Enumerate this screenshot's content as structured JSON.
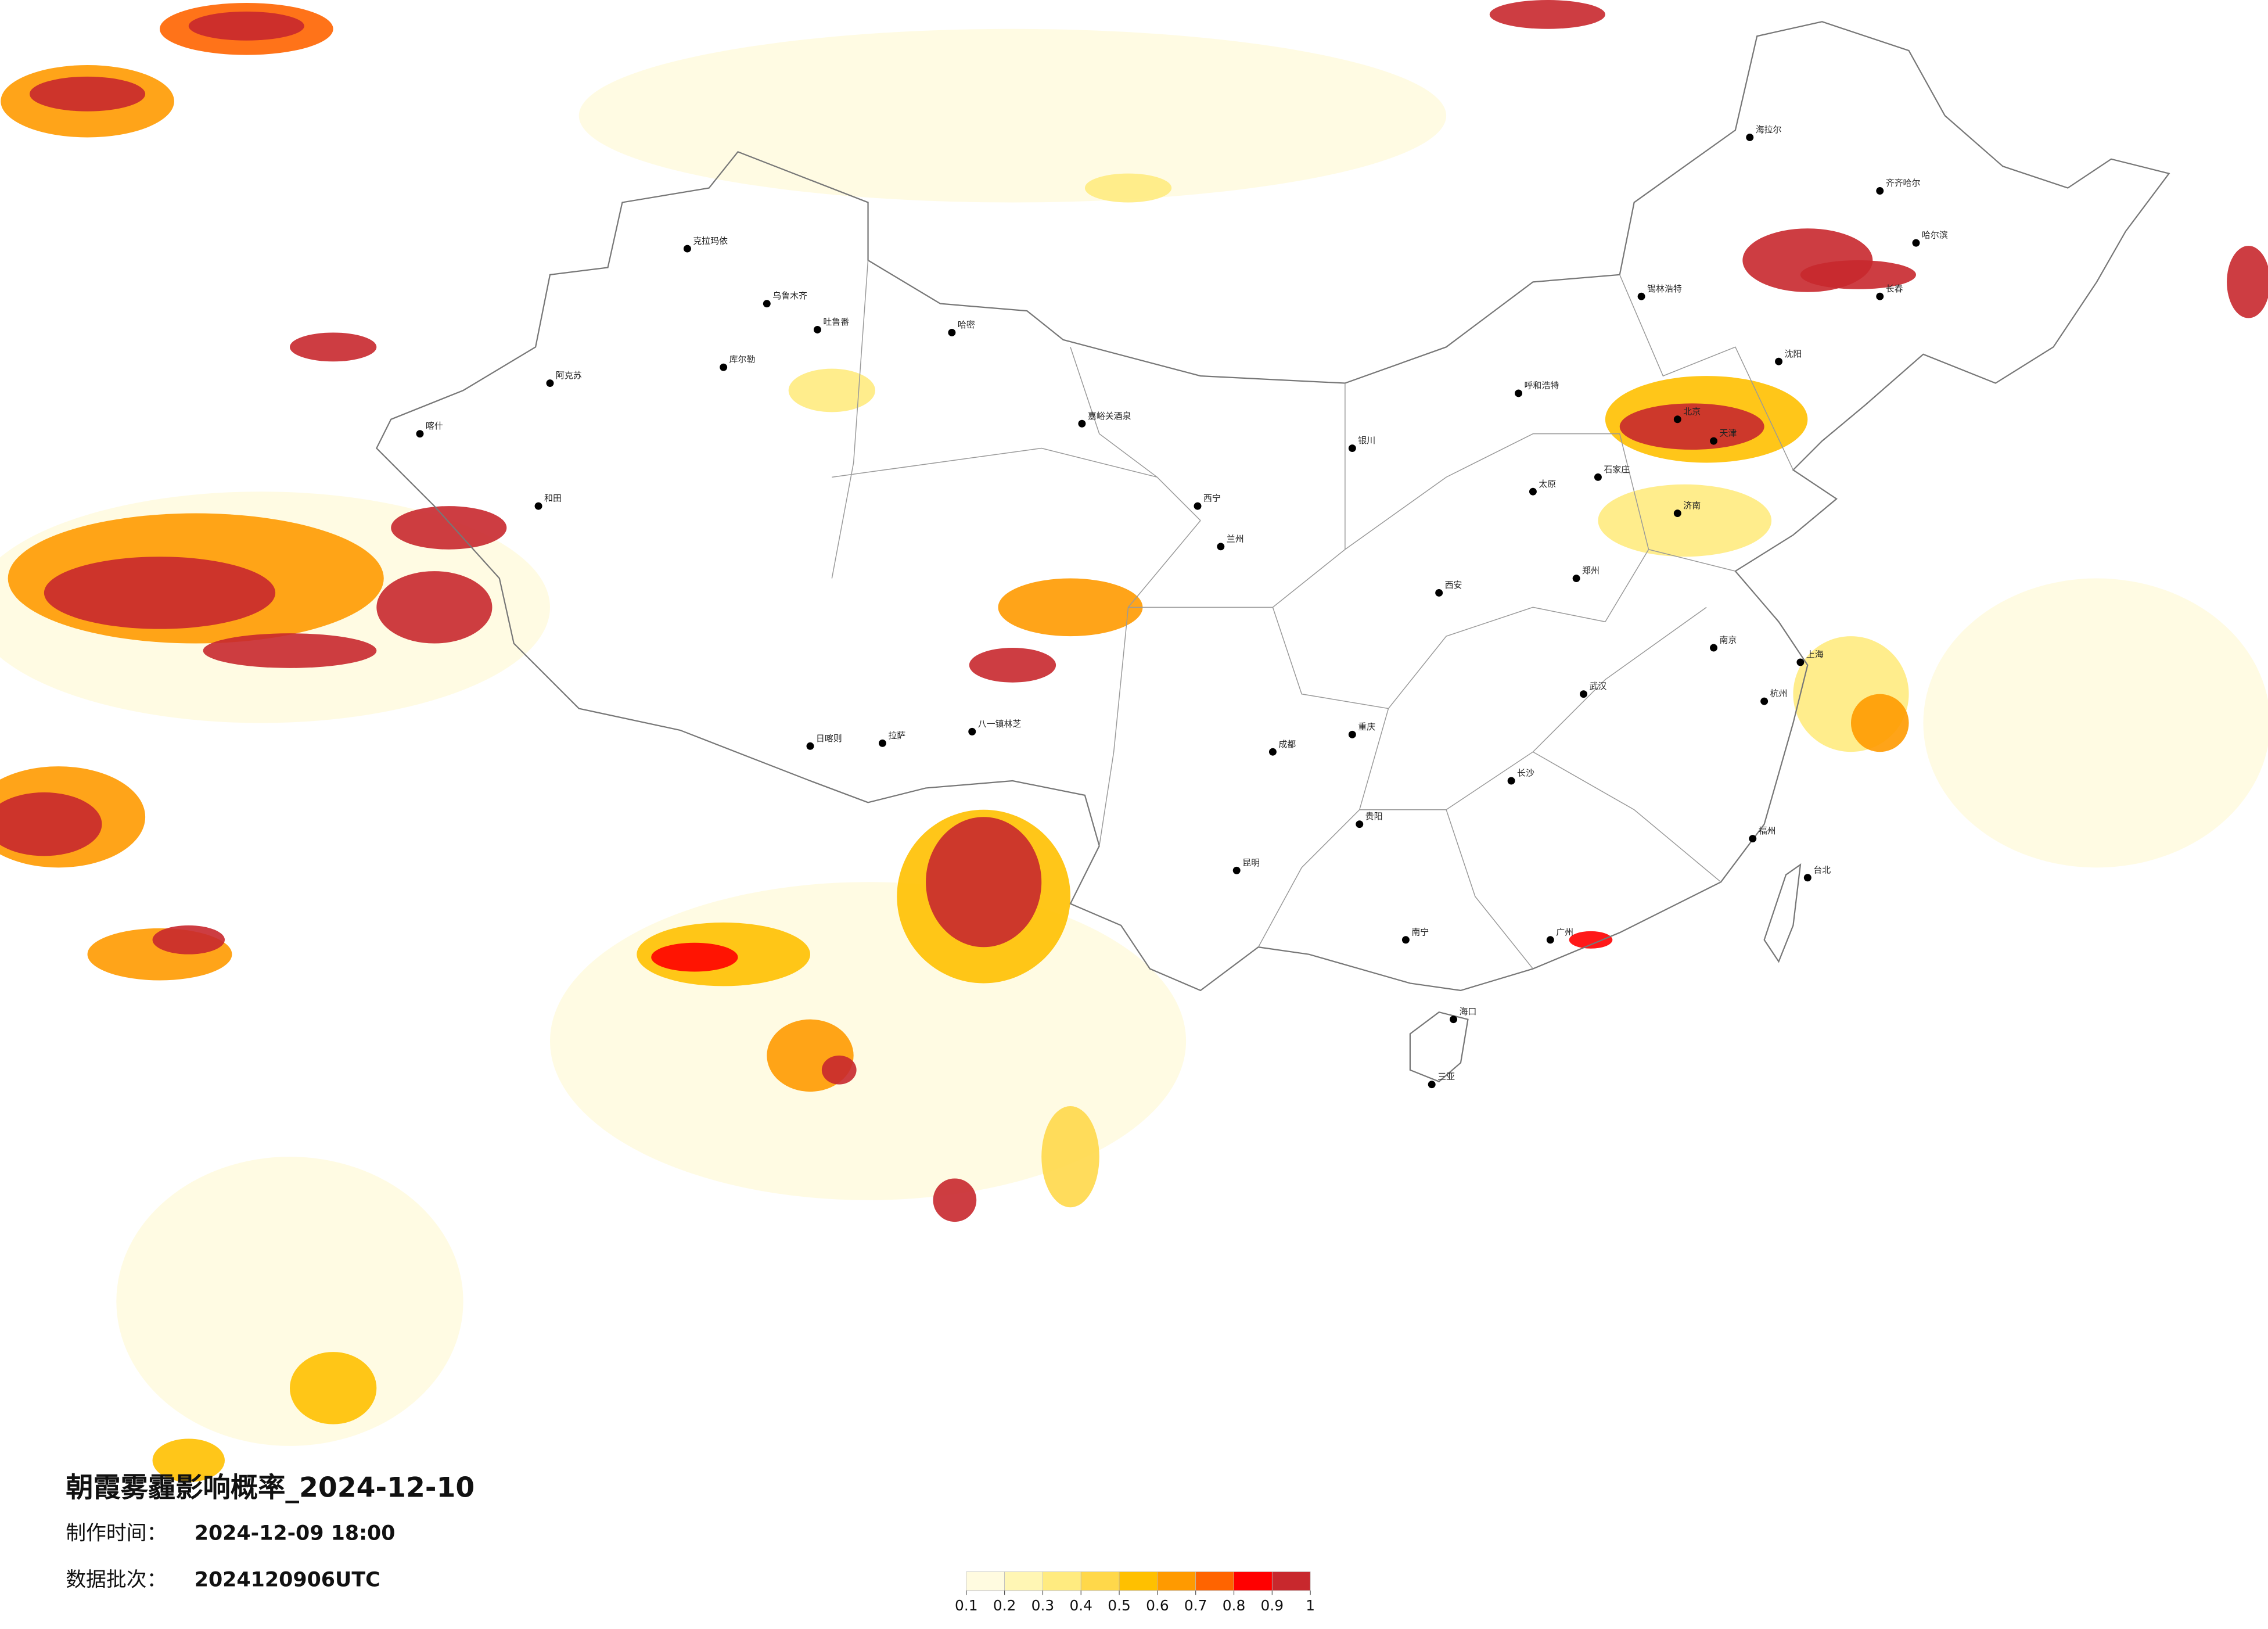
{
  "title": "朝霞雾霾影响概率_2024-12-10",
  "made_label": "制作时间：",
  "made_time": "2024-12-09 18:00",
  "batch_label": "数据批次：",
  "batch": "2024120906UTC",
  "colorbar": {
    "colors": [
      "#fffbe0",
      "#fff6b4",
      "#ffeb80",
      "#ffd84a",
      "#ffc000",
      "#ff9a00",
      "#ff6400",
      "#ff0000",
      "#c8282d"
    ],
    "ticks": [
      0.1,
      0.2,
      0.3,
      0.4,
      0.5,
      0.6,
      0.7,
      0.8,
      0.9,
      1
    ]
  },
  "cities": [
    "克拉玛依",
    "乌鲁木齐",
    "吐鲁番",
    "哈密",
    "库尔勒",
    "阿克苏",
    "喀什",
    "和田",
    "嘉峪关酒泉",
    "日喀则",
    "拉萨",
    "八一镇林芝",
    "西宁",
    "兰州",
    "成都",
    "重庆",
    "昆明",
    "贵阳",
    "南宁",
    "广州",
    "长沙",
    "武汉",
    "南京",
    "上海",
    "杭州",
    "福州",
    "台北",
    "北京",
    "天津",
    "石家庄",
    "太原",
    "济南",
    "郑州",
    "西安",
    "沈阳",
    "长春",
    "哈尔滨",
    "呼和浩特",
    "银川",
    "海口",
    "三亚",
    "海拉尔",
    "锡林浩特",
    "齐齐哈尔"
  ]
}
